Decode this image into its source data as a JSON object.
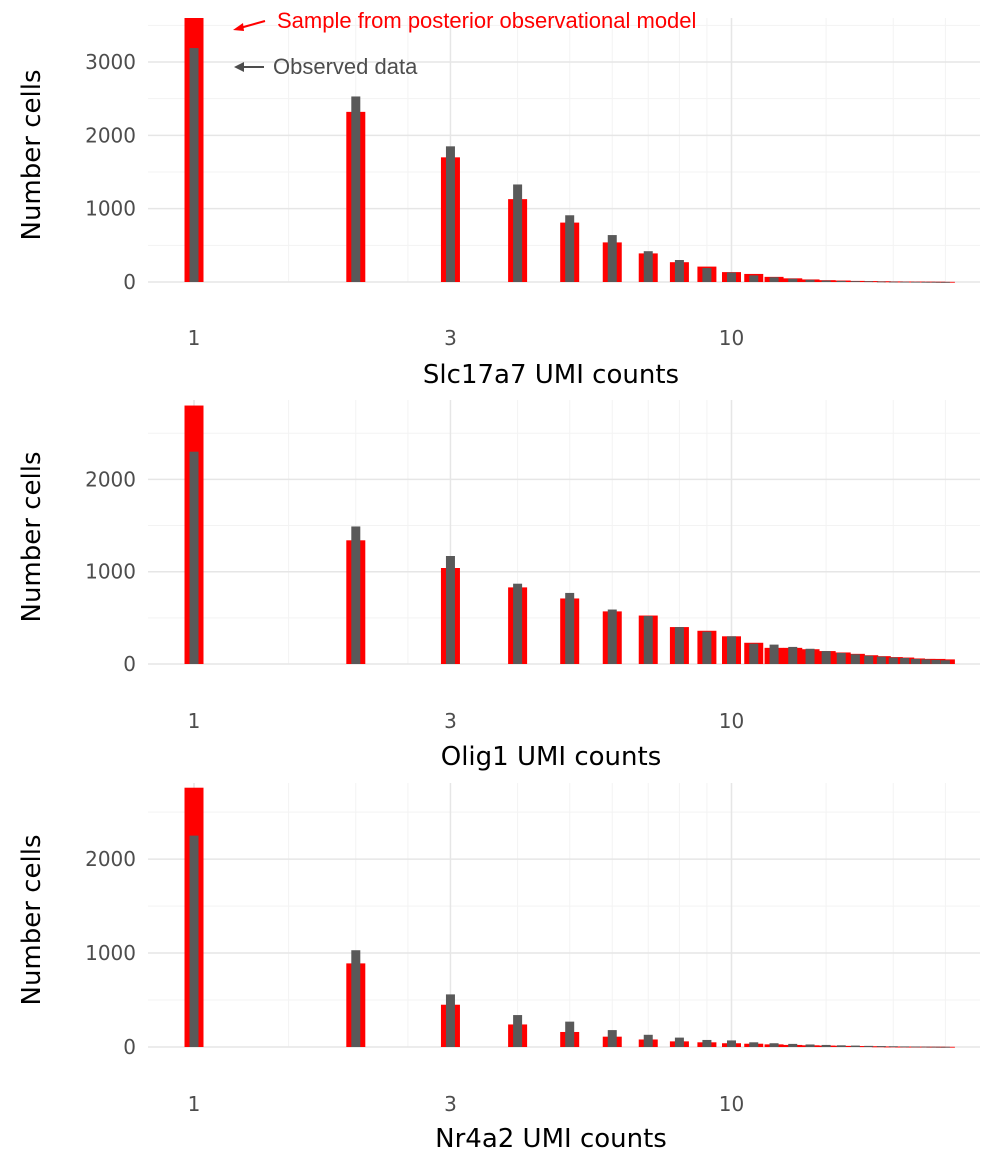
{
  "colors": {
    "posterior": "#ff0000",
    "observed": "#595959",
    "grid_major": "#e6e6e6",
    "grid_minor": "#f3f3f3",
    "tick_text": "#4d4d4d",
    "title_text": "#000000"
  },
  "annotations": {
    "posterior_label": "Sample from posterior observational model",
    "observed_label": "Observed data"
  },
  "chart_data": [
    {
      "type": "bar",
      "xscale": "log",
      "xlabel": "Slc17a7 UMI counts",
      "ylabel": "Number cells",
      "xlim": [
        0.8,
        30
      ],
      "xticks": [
        1,
        3,
        10
      ],
      "xtick_labels": [
        "1",
        "3",
        "10"
      ],
      "ylim": [
        0,
        3600
      ],
      "yticks": [
        0,
        1000,
        2000,
        3000
      ],
      "ytick_labels": [
        "0",
        "1000",
        "2000",
        "3000"
      ],
      "x": [
        1,
        2,
        3,
        4,
        5,
        6,
        7,
        8,
        9,
        10,
        11,
        12,
        13,
        14,
        15,
        16,
        17,
        18,
        19,
        20,
        21,
        22,
        23,
        24,
        25
      ],
      "series": [
        {
          "name": "Sample from posterior observational model",
          "values": [
            3600,
            2320,
            1700,
            1130,
            810,
            540,
            390,
            270,
            210,
            135,
            110,
            70,
            50,
            35,
            25,
            20,
            15,
            12,
            10,
            8,
            6,
            5,
            4,
            3,
            2
          ]
        },
        {
          "name": "Observed data",
          "values": [
            3190,
            2530,
            1850,
            1330,
            910,
            640,
            420,
            300,
            190,
            130,
            90,
            65,
            45,
            30,
            20,
            15,
            12,
            10,
            7,
            5,
            4,
            3,
            2,
            2,
            1
          ]
        }
      ]
    },
    {
      "type": "bar",
      "xscale": "log",
      "xlabel": "Olig1 UMI counts",
      "ylabel": "Number cells",
      "xlim": [
        0.8,
        30
      ],
      "xticks": [
        1,
        3,
        10
      ],
      "xtick_labels": [
        "1",
        "3",
        "10"
      ],
      "ylim": [
        0,
        2860
      ],
      "yticks": [
        0,
        1000,
        2000
      ],
      "ytick_labels": [
        "0",
        "1000",
        "2000"
      ],
      "x": [
        1,
        2,
        3,
        4,
        5,
        6,
        7,
        8,
        9,
        10,
        11,
        12,
        13,
        14,
        15,
        16,
        17,
        18,
        19,
        20,
        21,
        22,
        23,
        24,
        25
      ],
      "series": [
        {
          "name": "Sample from posterior observational model",
          "values": [
            2800,
            1340,
            1040,
            830,
            710,
            570,
            525,
            400,
            360,
            300,
            230,
            175,
            175,
            160,
            140,
            125,
            110,
            95,
            85,
            75,
            70,
            60,
            55,
            55,
            50
          ]
        },
        {
          "name": "Observed data",
          "values": [
            2300,
            1490,
            1170,
            870,
            770,
            590,
            520,
            400,
            350,
            300,
            220,
            210,
            185,
            165,
            140,
            120,
            105,
            90,
            80,
            70,
            65,
            55,
            50,
            45,
            40
          ]
        }
      ]
    },
    {
      "type": "bar",
      "xscale": "log",
      "xlabel": "Nr4a2 UMI counts",
      "ylabel": "Number cells",
      "xlim": [
        0.8,
        30
      ],
      "xticks": [
        1,
        3,
        10
      ],
      "xtick_labels": [
        "1",
        "3",
        "10"
      ],
      "ylim": [
        0,
        2810
      ],
      "yticks": [
        0,
        1000,
        2000
      ],
      "ytick_labels": [
        "0",
        "1000",
        "2000"
      ],
      "x": [
        1,
        2,
        3,
        4,
        5,
        6,
        7,
        8,
        9,
        10,
        11,
        12,
        13,
        14,
        15,
        16,
        17,
        18,
        19,
        20,
        21,
        22,
        23,
        24,
        25
      ],
      "series": [
        {
          "name": "Sample from posterior observational model",
          "values": [
            2760,
            890,
            450,
            240,
            160,
            110,
            80,
            60,
            50,
            40,
            35,
            28,
            22,
            18,
            15,
            12,
            10,
            8,
            6,
            5,
            4,
            3,
            3,
            2,
            2
          ]
        },
        {
          "name": "Observed data",
          "values": [
            2250,
            1030,
            560,
            340,
            270,
            180,
            130,
            100,
            75,
            70,
            50,
            40,
            33,
            27,
            22,
            18,
            15,
            12,
            10,
            8,
            6,
            5,
            4,
            3,
            2
          ]
        }
      ]
    }
  ]
}
